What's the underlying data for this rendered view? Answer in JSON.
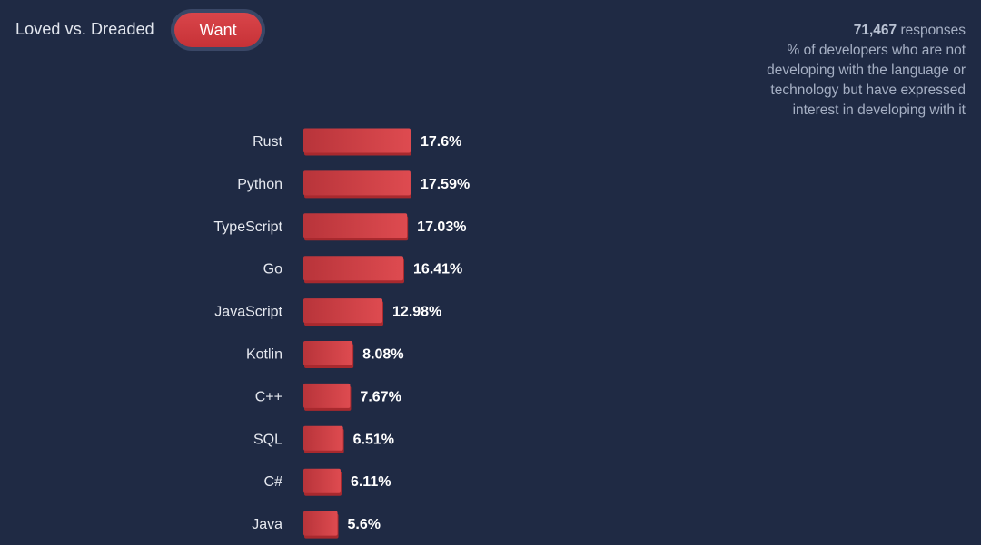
{
  "header": {
    "toggle_label": "Loved vs. Dreaded",
    "active_button": "Want"
  },
  "info": {
    "responses_count": "71,467",
    "responses_word": "responses",
    "description_lines": [
      "% of developers who are not",
      "developing with the language or",
      "technology but have expressed",
      "interest in developing with it"
    ]
  },
  "colors": {
    "background": "#1f2a44",
    "bar": "#d9454a",
    "bar_dark": "#a8292e"
  },
  "chart_data": {
    "type": "bar",
    "orientation": "horizontal",
    "categories": [
      "Rust",
      "Python",
      "TypeScript",
      "Go",
      "JavaScript",
      "Kotlin",
      "C++",
      "SQL",
      "C#",
      "Java"
    ],
    "values": [
      17.6,
      17.59,
      17.03,
      16.41,
      12.98,
      8.08,
      7.67,
      6.51,
      6.11,
      5.6
    ],
    "value_labels": [
      "17.6%",
      "17.59%",
      "17.03%",
      "16.41%",
      "12.98%",
      "8.08%",
      "7.67%",
      "6.51%",
      "6.11%",
      "5.6%"
    ],
    "unit": "%",
    "grid": false,
    "legend": "none"
  }
}
